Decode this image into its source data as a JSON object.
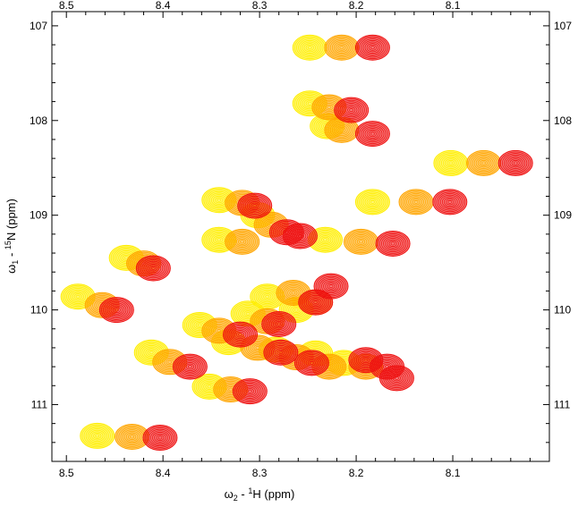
{
  "chart_data": {
    "type": "scatter",
    "subtype": "nmr-contour-overlay",
    "title": "",
    "xlabel_symbol": "ω",
    "xlabel_sub": "2",
    "xlabel_mid": " - ",
    "xlabel_sup": "1",
    "xlabel_nucleus": "H",
    "xlabel_unit": " (ppm)",
    "ylabel_symbol": "ω",
    "ylabel_sub": "1",
    "ylabel_mid": " - ",
    "ylabel_sup": "15",
    "ylabel_nucleus": "N",
    "ylabel_unit": " (ppm)",
    "xlim": [
      8.515,
      8.0
    ],
    "ylim": [
      106.85,
      111.6
    ],
    "xticks": [
      "8.5",
      "8.4",
      "8.3",
      "8.2",
      "8.1"
    ],
    "yticks": [
      "107",
      "108",
      "109",
      "110",
      "111"
    ],
    "grid": false,
    "legend": "none",
    "colors": {
      "yellow": "#ffee00",
      "orange": "#ffa500",
      "red": "#ee1111",
      "frame": "#000000"
    },
    "series": [
      {
        "color": "yellow",
        "peaks": [
          {
            "x": 8.248,
            "y": 107.23
          },
          {
            "x": 8.248,
            "y": 107.82
          },
          {
            "x": 8.23,
            "y": 108.06
          },
          {
            "x": 8.102,
            "y": 108.45
          },
          {
            "x": 8.183,
            "y": 108.86
          },
          {
            "x": 8.342,
            "y": 108.84
          },
          {
            "x": 8.302,
            "y": 109.0
          },
          {
            "x": 8.342,
            "y": 109.26
          },
          {
            "x": 8.232,
            "y": 109.26
          },
          {
            "x": 8.438,
            "y": 109.45
          },
          {
            "x": 8.488,
            "y": 109.86
          },
          {
            "x": 8.292,
            "y": 109.86
          },
          {
            "x": 8.262,
            "y": 110.0
          },
          {
            "x": 8.312,
            "y": 110.04
          },
          {
            "x": 8.362,
            "y": 110.16
          },
          {
            "x": 8.332,
            "y": 110.34
          },
          {
            "x": 8.283,
            "y": 110.42
          },
          {
            "x": 8.242,
            "y": 110.46
          },
          {
            "x": 8.213,
            "y": 110.56
          },
          {
            "x": 8.412,
            "y": 110.45
          },
          {
            "x": 8.352,
            "y": 110.81
          },
          {
            "x": 8.468,
            "y": 111.33
          }
        ]
      },
      {
        "color": "orange",
        "peaks": [
          {
            "x": 8.215,
            "y": 107.23
          },
          {
            "x": 8.228,
            "y": 107.86
          },
          {
            "x": 8.215,
            "y": 108.1
          },
          {
            "x": 8.068,
            "y": 108.45
          },
          {
            "x": 8.138,
            "y": 108.86
          },
          {
            "x": 8.318,
            "y": 108.87
          },
          {
            "x": 8.288,
            "y": 109.1
          },
          {
            "x": 8.318,
            "y": 109.28
          },
          {
            "x": 8.195,
            "y": 109.28
          },
          {
            "x": 8.42,
            "y": 109.51
          },
          {
            "x": 8.463,
            "y": 109.95
          },
          {
            "x": 8.265,
            "y": 109.82
          },
          {
            "x": 8.242,
            "y": 109.92
          },
          {
            "x": 8.292,
            "y": 110.12
          },
          {
            "x": 8.342,
            "y": 110.22
          },
          {
            "x": 8.302,
            "y": 110.4
          },
          {
            "x": 8.262,
            "y": 110.5
          },
          {
            "x": 8.228,
            "y": 110.6
          },
          {
            "x": 8.19,
            "y": 110.6
          },
          {
            "x": 8.393,
            "y": 110.55
          },
          {
            "x": 8.33,
            "y": 110.84
          },
          {
            "x": 8.432,
            "y": 111.34
          }
        ]
      },
      {
        "color": "red",
        "peaks": [
          {
            "x": 8.183,
            "y": 107.23
          },
          {
            "x": 8.205,
            "y": 107.89
          },
          {
            "x": 8.183,
            "y": 108.14
          },
          {
            "x": 8.035,
            "y": 108.45
          },
          {
            "x": 8.103,
            "y": 108.86
          },
          {
            "x": 8.305,
            "y": 108.9
          },
          {
            "x": 8.272,
            "y": 109.18
          },
          {
            "x": 8.258,
            "y": 109.22
          },
          {
            "x": 8.162,
            "y": 109.3
          },
          {
            "x": 8.41,
            "y": 109.56
          },
          {
            "x": 8.448,
            "y": 110.0
          },
          {
            "x": 8.226,
            "y": 109.75
          },
          {
            "x": 8.242,
            "y": 109.92
          },
          {
            "x": 8.28,
            "y": 110.15
          },
          {
            "x": 8.32,
            "y": 110.26
          },
          {
            "x": 8.278,
            "y": 110.45
          },
          {
            "x": 8.246,
            "y": 110.56
          },
          {
            "x": 8.19,
            "y": 110.53
          },
          {
            "x": 8.168,
            "y": 110.6
          },
          {
            "x": 8.158,
            "y": 110.72
          },
          {
            "x": 8.372,
            "y": 110.6
          },
          {
            "x": 8.31,
            "y": 110.86
          },
          {
            "x": 8.403,
            "y": 111.35
          }
        ]
      }
    ]
  }
}
